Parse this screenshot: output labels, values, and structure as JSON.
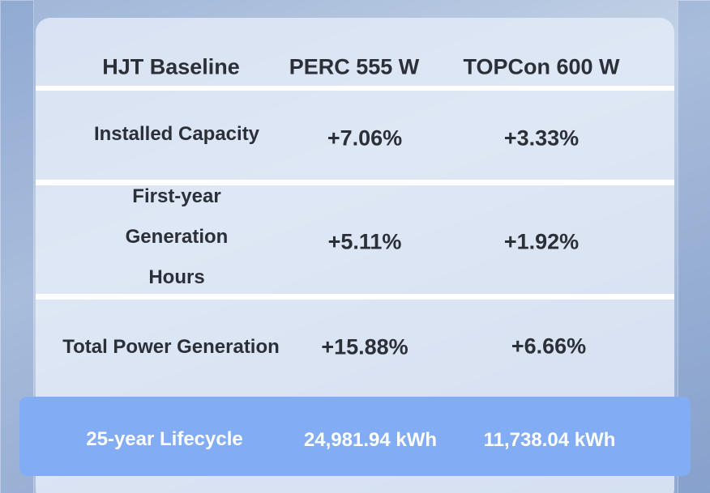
{
  "table": {
    "header": [
      "HJT Baseline",
      "PERC 555 W",
      "TOPCon 600 W"
    ],
    "rows": [
      [
        "Installed Capacity",
        "+7.06%",
        "+3.33%"
      ],
      [
        "First-year Generation Hours",
        "+5.11%",
        "+1.92%"
      ],
      [
        "Total Power Generation",
        "+15.88%",
        "+6.66%"
      ]
    ],
    "footer": [
      "25-year Lifecycle",
      "24,981.94 kWh",
      "11,738.04 kWh"
    ]
  }
}
